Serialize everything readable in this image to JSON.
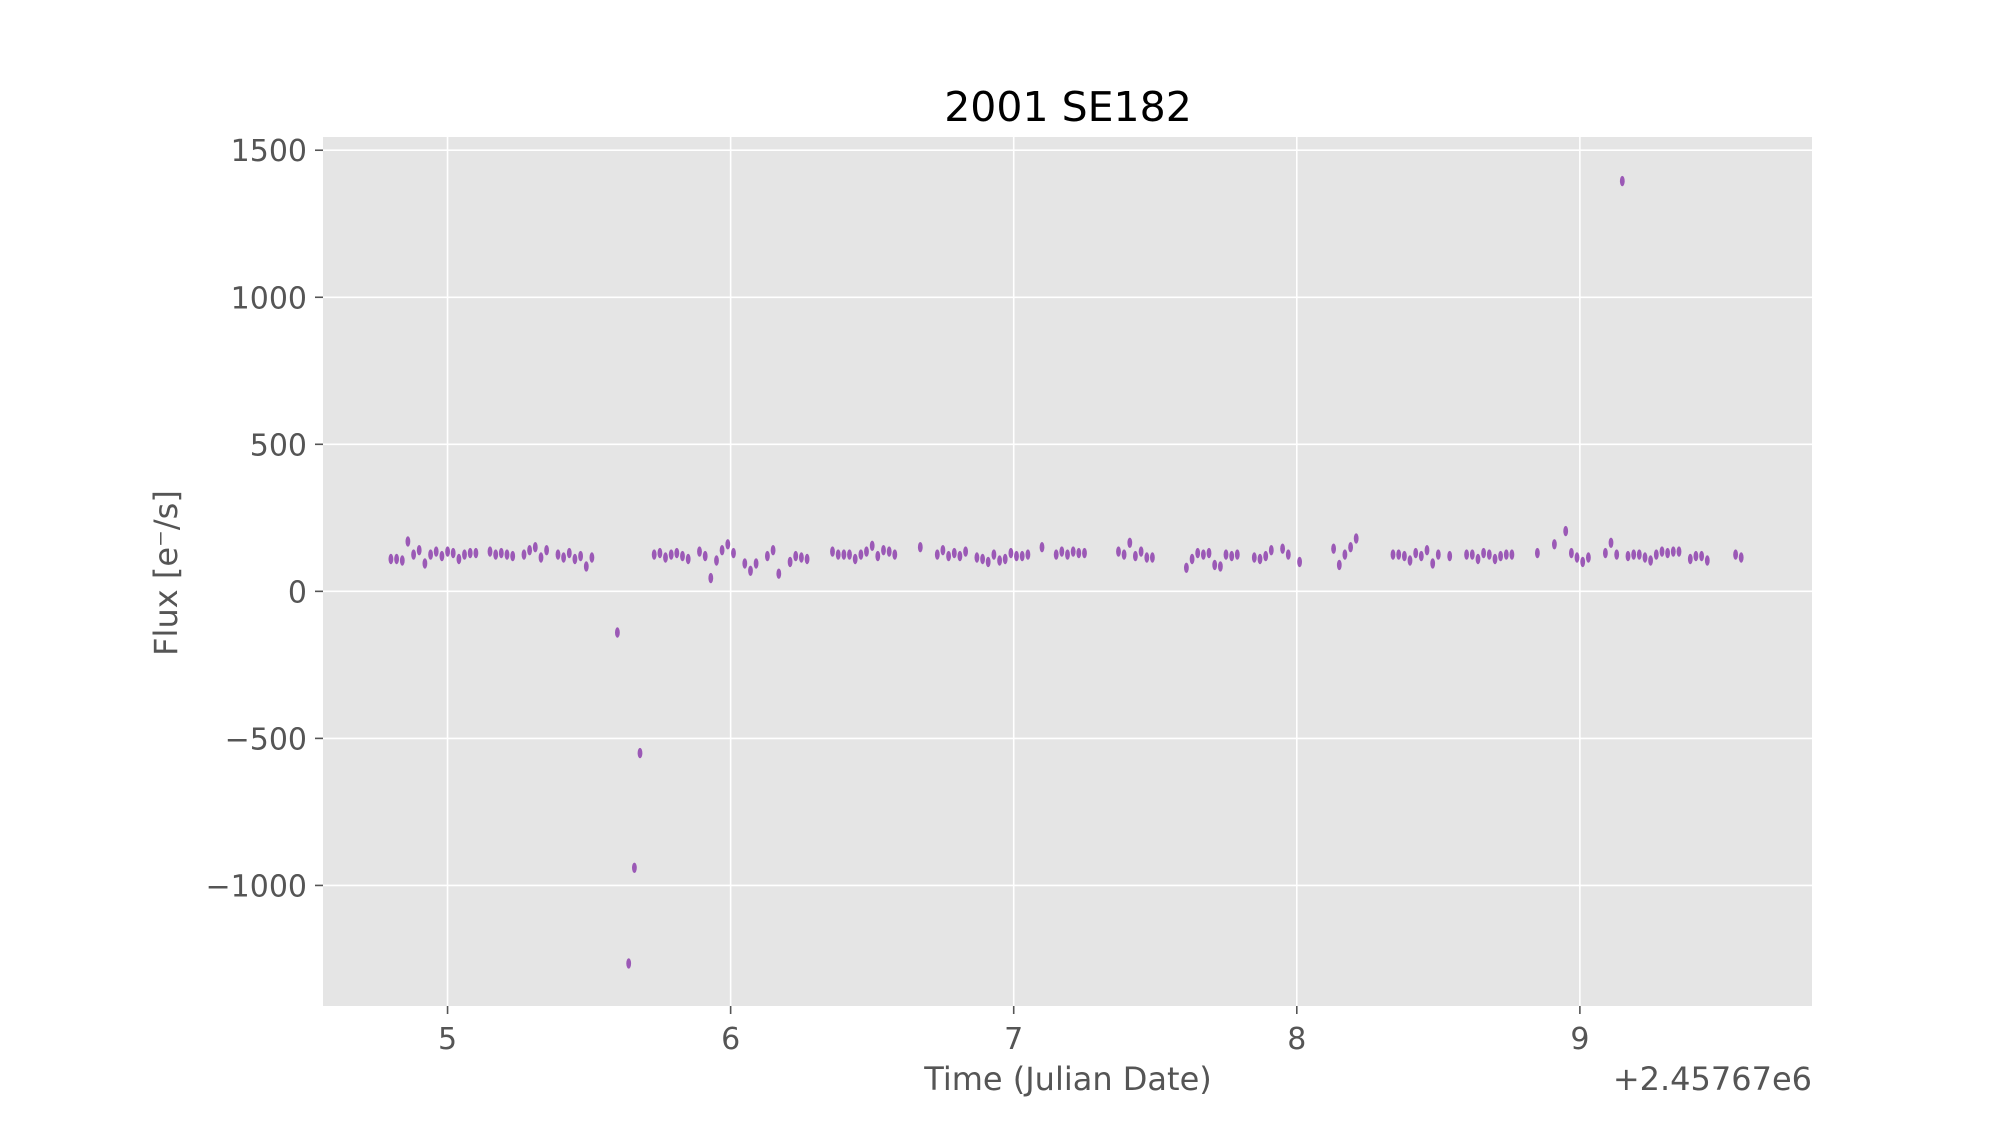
{
  "chart_data": {
    "type": "scatter",
    "title": "2001 SE182",
    "xlabel": "Time (Julian Date)",
    "ylabel": "Flux [e⁻/s]",
    "x_offset_label": "+2.45767e6",
    "xlim": [
      4.56,
      9.82
    ],
    "ylim": [
      -1410,
      1545
    ],
    "x_ticks": [
      5,
      6,
      7,
      8,
      9
    ],
    "x_tick_labels": [
      "5",
      "6",
      "7",
      "8",
      "9"
    ],
    "y_ticks": [
      -1000,
      -500,
      0,
      500,
      1000,
      1500
    ],
    "y_tick_labels": [
      "−1000",
      "−500",
      "0",
      "500",
      "1000",
      "1500"
    ],
    "grid": true,
    "marker_color": "#9b59b6",
    "background_color": "#e5e5e5",
    "grid_color": "#ffffff",
    "series": [
      {
        "name": "flux",
        "points": [
          [
            4.8,
            110
          ],
          [
            4.82,
            110
          ],
          [
            4.84,
            105
          ],
          [
            4.86,
            170
          ],
          [
            4.88,
            125
          ],
          [
            4.9,
            140
          ],
          [
            4.92,
            95
          ],
          [
            4.94,
            125
          ],
          [
            4.96,
            135
          ],
          [
            4.98,
            120
          ],
          [
            5.0,
            135
          ],
          [
            5.02,
            130
          ],
          [
            5.04,
            110
          ],
          [
            5.06,
            125
          ],
          [
            5.08,
            130
          ],
          [
            5.1,
            130
          ],
          [
            5.15,
            135
          ],
          [
            5.17,
            125
          ],
          [
            5.19,
            130
          ],
          [
            5.21,
            125
          ],
          [
            5.23,
            120
          ],
          [
            5.27,
            125
          ],
          [
            5.29,
            140
          ],
          [
            5.31,
            150
          ],
          [
            5.33,
            115
          ],
          [
            5.35,
            140
          ],
          [
            5.39,
            125
          ],
          [
            5.41,
            115
          ],
          [
            5.43,
            130
          ],
          [
            5.45,
            110
          ],
          [
            5.47,
            120
          ],
          [
            5.49,
            85
          ],
          [
            5.51,
            115
          ],
          [
            5.6,
            -140
          ],
          [
            5.64,
            -1265
          ],
          [
            5.66,
            -940
          ],
          [
            5.68,
            -550
          ],
          [
            5.73,
            125
          ],
          [
            5.75,
            130
          ],
          [
            5.77,
            115
          ],
          [
            5.79,
            125
          ],
          [
            5.81,
            130
          ],
          [
            5.83,
            120
          ],
          [
            5.85,
            110
          ],
          [
            5.89,
            135
          ],
          [
            5.91,
            120
          ],
          [
            5.93,
            45
          ],
          [
            5.95,
            105
          ],
          [
            5.97,
            140
          ],
          [
            5.99,
            160
          ],
          [
            6.01,
            130
          ],
          [
            6.05,
            95
          ],
          [
            6.07,
            70
          ],
          [
            6.09,
            95
          ],
          [
            6.13,
            120
          ],
          [
            6.15,
            140
          ],
          [
            6.17,
            60
          ],
          [
            6.21,
            100
          ],
          [
            6.23,
            120
          ],
          [
            6.25,
            115
          ],
          [
            6.27,
            110
          ],
          [
            6.36,
            135
          ],
          [
            6.38,
            125
          ],
          [
            6.4,
            125
          ],
          [
            6.42,
            125
          ],
          [
            6.44,
            110
          ],
          [
            6.46,
            125
          ],
          [
            6.48,
            135
          ],
          [
            6.5,
            155
          ],
          [
            6.52,
            120
          ],
          [
            6.54,
            140
          ],
          [
            6.56,
            135
          ],
          [
            6.58,
            125
          ],
          [
            6.67,
            150
          ],
          [
            6.73,
            125
          ],
          [
            6.75,
            140
          ],
          [
            6.77,
            120
          ],
          [
            6.79,
            130
          ],
          [
            6.81,
            120
          ],
          [
            6.83,
            135
          ],
          [
            6.87,
            115
          ],
          [
            6.89,
            110
          ],
          [
            6.91,
            100
          ],
          [
            6.93,
            125
          ],
          [
            6.95,
            105
          ],
          [
            6.97,
            110
          ],
          [
            6.99,
            130
          ],
          [
            7.01,
            120
          ],
          [
            7.03,
            120
          ],
          [
            7.05,
            125
          ],
          [
            7.1,
            150
          ],
          [
            7.15,
            125
          ],
          [
            7.17,
            135
          ],
          [
            7.19,
            125
          ],
          [
            7.21,
            135
          ],
          [
            7.23,
            130
          ],
          [
            7.25,
            130
          ],
          [
            7.37,
            135
          ],
          [
            7.39,
            125
          ],
          [
            7.41,
            165
          ],
          [
            7.43,
            120
          ],
          [
            7.45,
            135
          ],
          [
            7.47,
            115
          ],
          [
            7.49,
            115
          ],
          [
            7.61,
            80
          ],
          [
            7.63,
            110
          ],
          [
            7.65,
            130
          ],
          [
            7.67,
            125
          ],
          [
            7.69,
            130
          ],
          [
            7.71,
            90
          ],
          [
            7.73,
            85
          ],
          [
            7.75,
            125
          ],
          [
            7.77,
            120
          ],
          [
            7.79,
            125
          ],
          [
            7.85,
            115
          ],
          [
            7.87,
            110
          ],
          [
            7.89,
            120
          ],
          [
            7.91,
            140
          ],
          [
            7.95,
            145
          ],
          [
            7.97,
            125
          ],
          [
            8.01,
            100
          ],
          [
            8.13,
            145
          ],
          [
            8.15,
            90
          ],
          [
            8.17,
            125
          ],
          [
            8.19,
            150
          ],
          [
            8.21,
            180
          ],
          [
            8.34,
            125
          ],
          [
            8.36,
            125
          ],
          [
            8.38,
            120
          ],
          [
            8.4,
            105
          ],
          [
            8.42,
            130
          ],
          [
            8.44,
            120
          ],
          [
            8.46,
            140
          ],
          [
            8.48,
            95
          ],
          [
            8.5,
            125
          ],
          [
            8.54,
            120
          ],
          [
            8.6,
            125
          ],
          [
            8.62,
            125
          ],
          [
            8.64,
            110
          ],
          [
            8.66,
            130
          ],
          [
            8.68,
            125
          ],
          [
            8.7,
            110
          ],
          [
            8.72,
            120
          ],
          [
            8.74,
            125
          ],
          [
            8.76,
            125
          ],
          [
            8.85,
            130
          ],
          [
            8.91,
            160
          ],
          [
            8.95,
            205
          ],
          [
            8.97,
            130
          ],
          [
            8.99,
            115
          ],
          [
            9.01,
            100
          ],
          [
            9.03,
            115
          ],
          [
            9.09,
            130
          ],
          [
            9.11,
            165
          ],
          [
            9.13,
            125
          ],
          [
            9.15,
            1395
          ],
          [
            9.17,
            120
          ],
          [
            9.19,
            125
          ],
          [
            9.21,
            125
          ],
          [
            9.23,
            115
          ],
          [
            9.25,
            105
          ],
          [
            9.27,
            125
          ],
          [
            9.29,
            135
          ],
          [
            9.31,
            130
          ],
          [
            9.33,
            135
          ],
          [
            9.35,
            135
          ],
          [
            9.39,
            110
          ],
          [
            9.41,
            120
          ],
          [
            9.43,
            120
          ],
          [
            9.45,
            105
          ],
          [
            9.55,
            125
          ],
          [
            9.57,
            115
          ]
        ]
      }
    ]
  }
}
